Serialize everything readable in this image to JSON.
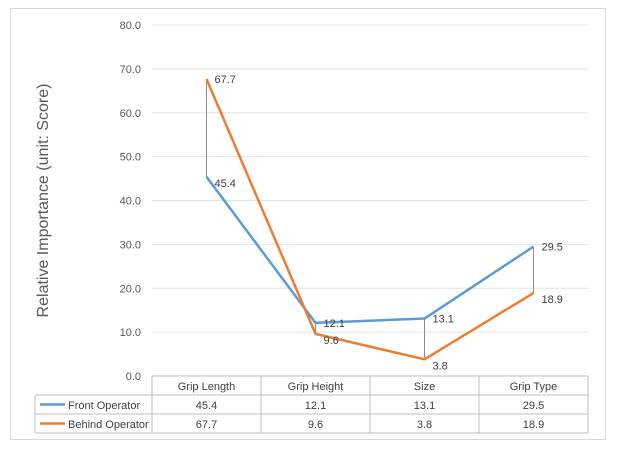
{
  "chart_data": {
    "type": "line",
    "ylabel": "Relative Importance (unit: Score)",
    "xlabel": "",
    "ylim": [
      0,
      80
    ],
    "yticks": [
      "0.0",
      "10.0",
      "20.0",
      "30.0",
      "40.0",
      "50.0",
      "60.0",
      "70.0",
      "80.0"
    ],
    "grid": true,
    "legend": "data-table",
    "categories": [
      "Grip Length",
      "Grip Height",
      "Size",
      "Grip Type"
    ],
    "series": [
      {
        "name": "Front Operator",
        "color": "#5b9bd5",
        "values": [
          45.4,
          12.1,
          13.1,
          29.5
        ],
        "labels": [
          "45.4",
          "12.1",
          "13.1",
          "29.5"
        ]
      },
      {
        "name": "Behind Operator",
        "color": "#ed7d31",
        "values": [
          67.7,
          9.6,
          3.8,
          18.9
        ],
        "labels": [
          "67.7",
          "9.6",
          "3.8",
          "18.9"
        ]
      }
    ]
  }
}
